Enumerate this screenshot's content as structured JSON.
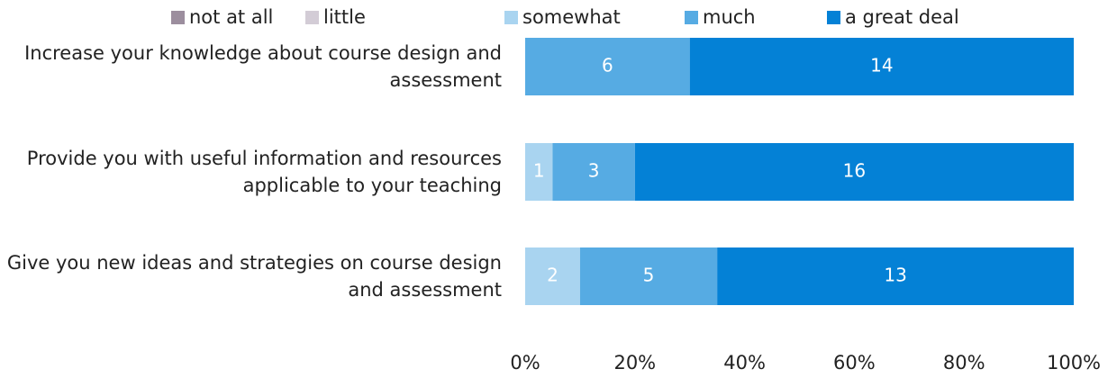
{
  "chart_data": {
    "type": "bar",
    "orientation": "horizontal",
    "stacked": "percent",
    "categories": [
      "Increase your knowledge about course design and assessment",
      "Provide you with useful information and resources applicable to your teaching",
      "Give you new ideas and strategies on course design and assessment"
    ],
    "series": [
      {
        "name": "not at all",
        "color": "#9c8e9e",
        "values": [
          0,
          0,
          0
        ]
      },
      {
        "name": "little",
        "color": "#d3ccd6",
        "values": [
          0,
          0,
          0
        ]
      },
      {
        "name": "somewhat",
        "color": "#a9d4f0",
        "values": [
          0,
          1,
          2
        ]
      },
      {
        "name": "much",
        "color": "#56abe3",
        "values": [
          6,
          3,
          5
        ]
      },
      {
        "name": "a great deal",
        "color": "#0481d6",
        "values": [
          14,
          16,
          13
        ]
      }
    ],
    "xlim": [
      0,
      100
    ],
    "xticks": [
      {
        "value": 0,
        "label": "0%"
      },
      {
        "value": 20,
        "label": "20%"
      },
      {
        "value": 40,
        "label": "40%"
      },
      {
        "value": 60,
        "label": "60%"
      },
      {
        "value": 80,
        "label": "80%"
      },
      {
        "value": 100,
        "label": "100%"
      }
    ],
    "legend": "top"
  }
}
